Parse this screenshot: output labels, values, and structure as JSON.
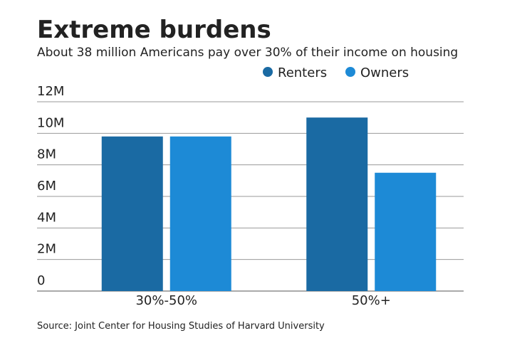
{
  "chart_data": {
    "type": "bar",
    "title": "Extreme burdens",
    "subtitle": "About 38 million Americans pay over 30% of their income on housing",
    "source": "Source: Joint Center for Housing Studies of Harvard University",
    "categories": [
      "30%-50%",
      "50%+"
    ],
    "series": [
      {
        "name": "Renters",
        "color": "#1a6aa3",
        "values": [
          9.8,
          11.0
        ]
      },
      {
        "name": "Owners",
        "color": "#1d8ad6",
        "values": [
          9.8,
          7.5
        ]
      }
    ],
    "ylim": [
      0,
      12
    ],
    "yticks": [
      0,
      {
        "value": 2,
        "label": "2M"
      },
      {
        "value": 4,
        "label": "4M"
      },
      {
        "value": 6,
        "label": "6M"
      },
      {
        "value": 8,
        "label": "8M"
      },
      {
        "value": 10,
        "label": "10M"
      },
      {
        "value": 12,
        "label": "12M"
      }
    ],
    "grid": true
  }
}
